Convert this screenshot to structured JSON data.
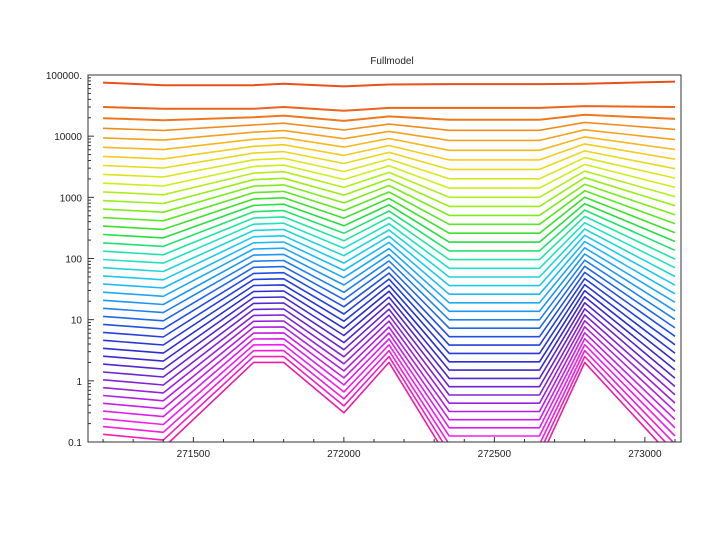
{
  "chart_data": {
    "type": "line",
    "title": "Fullmodel",
    "xlabel": "",
    "ylabel": "",
    "x_scale": "linear",
    "y_scale": "log",
    "xlim": [
      271150,
      273120
    ],
    "ylim": [
      0.1,
      100000
    ],
    "grid": false,
    "legend": "none",
    "x_ticks": [
      {
        "value": 271500,
        "label": "271500"
      },
      {
        "value": 272000,
        "label": "272000"
      },
      {
        "value": 272500,
        "label": "272500"
      },
      {
        "value": 273000,
        "label": "273000"
      }
    ],
    "y_ticks": [
      {
        "value": 0.1,
        "label": "0.1"
      },
      {
        "value": 1,
        "label": "1"
      },
      {
        "value": 10,
        "label": "10"
      },
      {
        "value": 100,
        "label": "100"
      },
      {
        "value": 1000,
        "label": "1000"
      },
      {
        "value": 10000,
        "label": "10000"
      },
      {
        "value": 100000,
        "label": "100000."
      }
    ],
    "x": [
      271200,
      271400,
      271700,
      271800,
      272000,
      272150,
      272350,
      272650,
      272800,
      273100
    ],
    "series_count": 42,
    "series_top_values": [
      75000,
      68000,
      68000,
      72000,
      65000,
      70000,
      71000,
      71000,
      72000,
      78000
    ],
    "series_top_secondary": [
      30000,
      28000,
      28000,
      30000,
      26000,
      29000,
      29000,
      29000,
      31000,
      30000
    ],
    "series_bottom_values": [
      0.1,
      0.08,
      2,
      2,
      0.3,
      2,
      0.05,
      0.05,
      2,
      0.05
    ],
    "colormap": [
      "#e8501a",
      "#f08a1e",
      "#f7c91e",
      "#d2ef1a",
      "#86ed18",
      "#28dc32",
      "#20e6bc",
      "#1ec2f6",
      "#1f8ef0",
      "#2246e2",
      "#2a2ad2",
      "#6e24d4",
      "#b41ee6",
      "#f21ef0",
      "#f01ca2"
    ]
  }
}
